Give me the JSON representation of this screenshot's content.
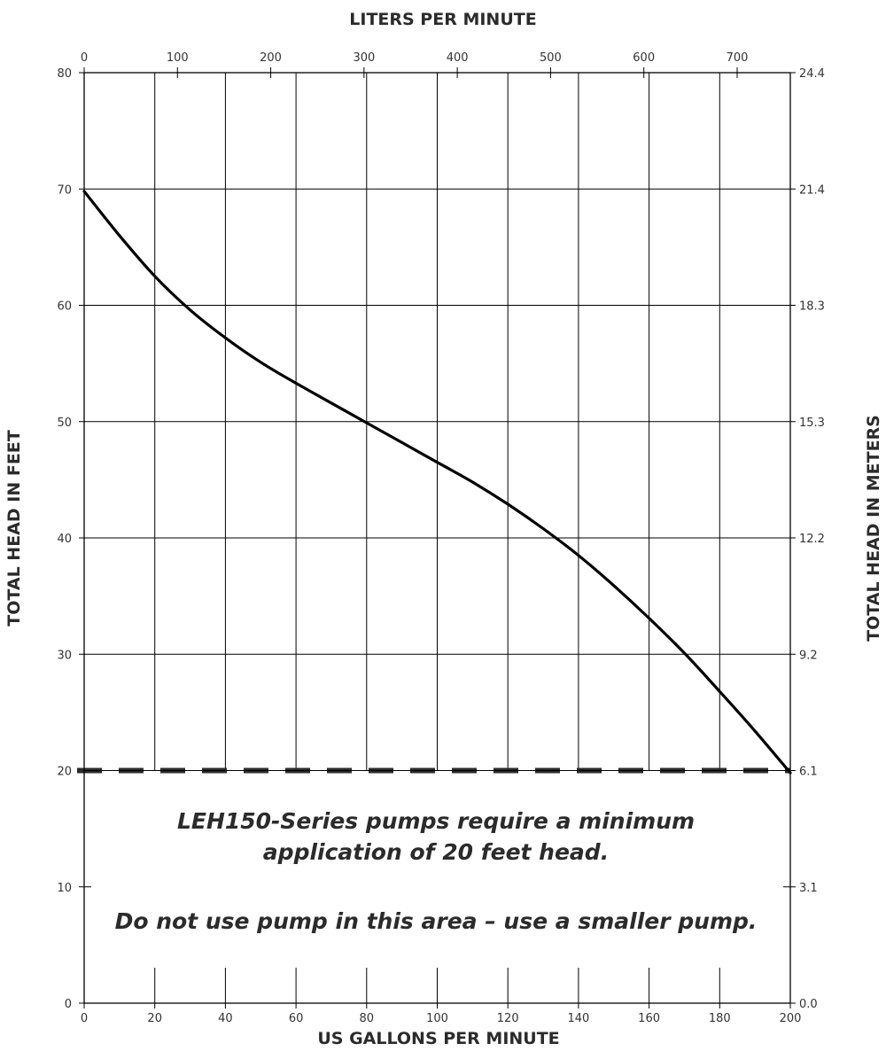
{
  "chart_data": {
    "type": "line",
    "x_bottom": {
      "label": "US GALLONS PER MINUTE",
      "range": [
        0,
        200
      ],
      "ticks": [
        0,
        20,
        40,
        60,
        80,
        100,
        120,
        140,
        160,
        180,
        200
      ]
    },
    "x_top": {
      "label": "LITERS PER MINUTE",
      "range": [
        0,
        757
      ],
      "ticks": [
        0,
        100,
        200,
        300,
        400,
        500,
        600,
        700
      ]
    },
    "y_left": {
      "label": "TOTAL HEAD IN FEET",
      "range": [
        0,
        80
      ],
      "ticks": [
        0,
        10,
        20,
        30,
        40,
        50,
        60,
        70,
        80
      ]
    },
    "y_right": {
      "label": "TOTAL HEAD IN METERS",
      "tick_labels": [
        "0.0",
        "3.1",
        "6.1",
        "9.2",
        "12.2",
        "15.3",
        "18.3",
        "21.4",
        "24.4"
      ]
    },
    "grid": true,
    "series": [
      {
        "x": [
          0,
          10,
          20,
          30,
          40,
          50,
          60,
          70,
          80,
          90,
          100,
          110,
          120,
          130,
          140,
          150,
          160,
          170,
          180,
          190,
          200
        ],
        "y": [
          69.8,
          66.0,
          62.5,
          59.6,
          57.2,
          55.1,
          53.3,
          51.6,
          49.9,
          48.2,
          46.5,
          44.8,
          42.9,
          40.8,
          38.5,
          35.9,
          33.1,
          30.1,
          26.8,
          23.4,
          19.8
        ],
        "color": "#000000"
      }
    ],
    "threshold": {
      "y": 20,
      "style": "dashed",
      "color": "#2b2b2b"
    },
    "annotations": [
      "LEH150-Series pumps require a minimum",
      "application of 20 feet head.",
      "Do not use pump in this area – use a smaller pump."
    ]
  }
}
